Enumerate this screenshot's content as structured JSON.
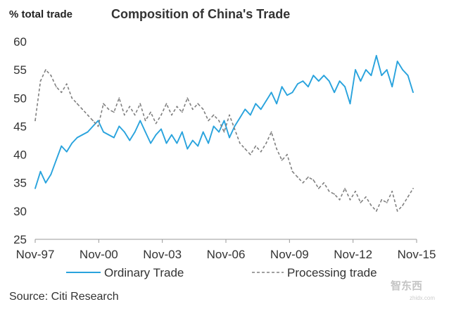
{
  "header": {
    "y_unit_label": "% total trade",
    "title": "Composition of China's Trade"
  },
  "footer": {
    "source": "Source: Citi Research"
  },
  "watermark": {
    "text": "智东西",
    "sub": "zhidx.com"
  },
  "colors": {
    "ordinary": "#29a3dd",
    "processing": "#808080",
    "axis": "#999999",
    "text": "#333333"
  },
  "chart_data": {
    "type": "line",
    "title": "Composition of China's Trade",
    "ylabel": "% total trade",
    "ylim": [
      25,
      60
    ],
    "yticks": [
      25,
      30,
      35,
      40,
      45,
      50,
      55,
      60
    ],
    "xlim": [
      "1997-11",
      "2016-01"
    ],
    "xtick_labels": [
      "Nov-97",
      "Nov-00",
      "Nov-03",
      "Nov-06",
      "Nov-09",
      "Nov-12",
      "Nov-15"
    ],
    "grid": false,
    "legend": "bottom",
    "series": [
      {
        "name": "Ordinary Trade",
        "style": "solid",
        "points": [
          [
            "1997-11",
            34.0
          ],
          [
            "1998-02",
            37.0
          ],
          [
            "1998-05",
            35.0
          ],
          [
            "1998-08",
            36.5
          ],
          [
            "1998-11",
            39.0
          ],
          [
            "1999-02",
            41.5
          ],
          [
            "1999-05",
            40.5
          ],
          [
            "1999-08",
            42.0
          ],
          [
            "1999-11",
            43.0
          ],
          [
            "2000-02",
            43.5
          ],
          [
            "2000-05",
            44.0
          ],
          [
            "2000-08",
            45.0
          ],
          [
            "2000-11",
            46.0
          ],
          [
            "2001-02",
            44.0
          ],
          [
            "2001-05",
            43.5
          ],
          [
            "2001-08",
            43.0
          ],
          [
            "2001-11",
            45.0
          ],
          [
            "2002-02",
            44.0
          ],
          [
            "2002-05",
            42.5
          ],
          [
            "2002-08",
            44.0
          ],
          [
            "2002-11",
            46.0
          ],
          [
            "2003-02",
            44.0
          ],
          [
            "2003-05",
            42.0
          ],
          [
            "2003-08",
            43.5
          ],
          [
            "2003-11",
            44.5
          ],
          [
            "2004-02",
            42.0
          ],
          [
            "2004-05",
            43.5
          ],
          [
            "2004-08",
            42.0
          ],
          [
            "2004-11",
            44.0
          ],
          [
            "2005-02",
            41.0
          ],
          [
            "2005-05",
            42.5
          ],
          [
            "2005-08",
            41.5
          ],
          [
            "2005-11",
            44.0
          ],
          [
            "2006-02",
            42.0
          ],
          [
            "2006-05",
            45.0
          ],
          [
            "2006-08",
            44.0
          ],
          [
            "2006-11",
            46.0
          ],
          [
            "2007-02",
            43.0
          ],
          [
            "2007-05",
            45.0
          ],
          [
            "2007-08",
            46.5
          ],
          [
            "2007-11",
            48.0
          ],
          [
            "2008-02",
            47.0
          ],
          [
            "2008-05",
            49.0
          ],
          [
            "2008-08",
            48.0
          ],
          [
            "2008-11",
            49.5
          ],
          [
            "2009-02",
            51.0
          ],
          [
            "2009-05",
            49.0
          ],
          [
            "2009-08",
            52.0
          ],
          [
            "2009-11",
            50.5
          ],
          [
            "2010-02",
            51.0
          ],
          [
            "2010-05",
            52.5
          ],
          [
            "2010-08",
            53.0
          ],
          [
            "2010-11",
            52.0
          ],
          [
            "2011-02",
            54.0
          ],
          [
            "2011-05",
            53.0
          ],
          [
            "2011-08",
            54.0
          ],
          [
            "2011-11",
            53.0
          ],
          [
            "2012-02",
            51.0
          ],
          [
            "2012-05",
            53.0
          ],
          [
            "2012-08",
            52.0
          ],
          [
            "2012-11",
            49.0
          ],
          [
            "2013-02",
            55.0
          ],
          [
            "2013-05",
            53.0
          ],
          [
            "2013-08",
            55.0
          ],
          [
            "2013-11",
            54.0
          ],
          [
            "2014-02",
            57.5
          ],
          [
            "2014-05",
            54.0
          ],
          [
            "2014-08",
            55.0
          ],
          [
            "2014-11",
            52.0
          ],
          [
            "2015-02",
            56.5
          ],
          [
            "2015-05",
            55.0
          ],
          [
            "2015-08",
            54.0
          ],
          [
            "2015-11",
            51.0
          ]
        ]
      },
      {
        "name": "Processing trade",
        "style": "dashed",
        "points": [
          [
            "1997-11",
            46.0
          ],
          [
            "1998-02",
            53.0
          ],
          [
            "1998-05",
            55.0
          ],
          [
            "1998-08",
            54.0
          ],
          [
            "1998-11",
            52.0
          ],
          [
            "1999-02",
            51.0
          ],
          [
            "1999-05",
            52.5
          ],
          [
            "1999-08",
            50.0
          ],
          [
            "1999-11",
            49.0
          ],
          [
            "2000-02",
            48.0
          ],
          [
            "2000-05",
            47.0
          ],
          [
            "2000-08",
            46.0
          ],
          [
            "2000-11",
            45.0
          ],
          [
            "2001-02",
            49.0
          ],
          [
            "2001-05",
            48.0
          ],
          [
            "2001-08",
            47.5
          ],
          [
            "2001-11",
            50.0
          ],
          [
            "2002-02",
            47.0
          ],
          [
            "2002-05",
            48.5
          ],
          [
            "2002-08",
            47.0
          ],
          [
            "2002-11",
            49.0
          ],
          [
            "2003-02",
            46.0
          ],
          [
            "2003-05",
            47.5
          ],
          [
            "2003-08",
            45.5
          ],
          [
            "2003-11",
            47.0
          ],
          [
            "2004-02",
            49.0
          ],
          [
            "2004-05",
            47.0
          ],
          [
            "2004-08",
            48.5
          ],
          [
            "2004-11",
            47.5
          ],
          [
            "2005-02",
            50.0
          ],
          [
            "2005-05",
            48.0
          ],
          [
            "2005-08",
            49.0
          ],
          [
            "2005-11",
            48.0
          ],
          [
            "2006-02",
            46.0
          ],
          [
            "2006-05",
            47.0
          ],
          [
            "2006-08",
            46.0
          ],
          [
            "2006-11",
            44.0
          ],
          [
            "2007-02",
            47.0
          ],
          [
            "2007-05",
            44.5
          ],
          [
            "2007-08",
            42.0
          ],
          [
            "2007-11",
            41.0
          ],
          [
            "2008-02",
            40.0
          ],
          [
            "2008-05",
            41.5
          ],
          [
            "2008-08",
            40.5
          ],
          [
            "2008-11",
            42.0
          ],
          [
            "2009-02",
            44.0
          ],
          [
            "2009-05",
            41.0
          ],
          [
            "2009-08",
            39.0
          ],
          [
            "2009-11",
            40.0
          ],
          [
            "2010-02",
            37.0
          ],
          [
            "2010-05",
            36.0
          ],
          [
            "2010-08",
            35.0
          ],
          [
            "2010-11",
            36.0
          ],
          [
            "2011-02",
            35.5
          ],
          [
            "2011-05",
            34.0
          ],
          [
            "2011-08",
            35.0
          ],
          [
            "2011-11",
            33.5
          ],
          [
            "2012-02",
            33.0
          ],
          [
            "2012-05",
            32.0
          ],
          [
            "2012-08",
            34.0
          ],
          [
            "2012-11",
            32.0
          ],
          [
            "2013-02",
            33.5
          ],
          [
            "2013-05",
            31.5
          ],
          [
            "2013-08",
            32.5
          ],
          [
            "2013-11",
            31.0
          ],
          [
            "2014-02",
            30.0
          ],
          [
            "2014-05",
            32.0
          ],
          [
            "2014-08",
            31.5
          ],
          [
            "2014-11",
            33.5
          ],
          [
            "2015-02",
            30.0
          ],
          [
            "2015-05",
            31.0
          ],
          [
            "2015-08",
            32.5
          ],
          [
            "2015-11",
            34.0
          ]
        ]
      }
    ]
  }
}
